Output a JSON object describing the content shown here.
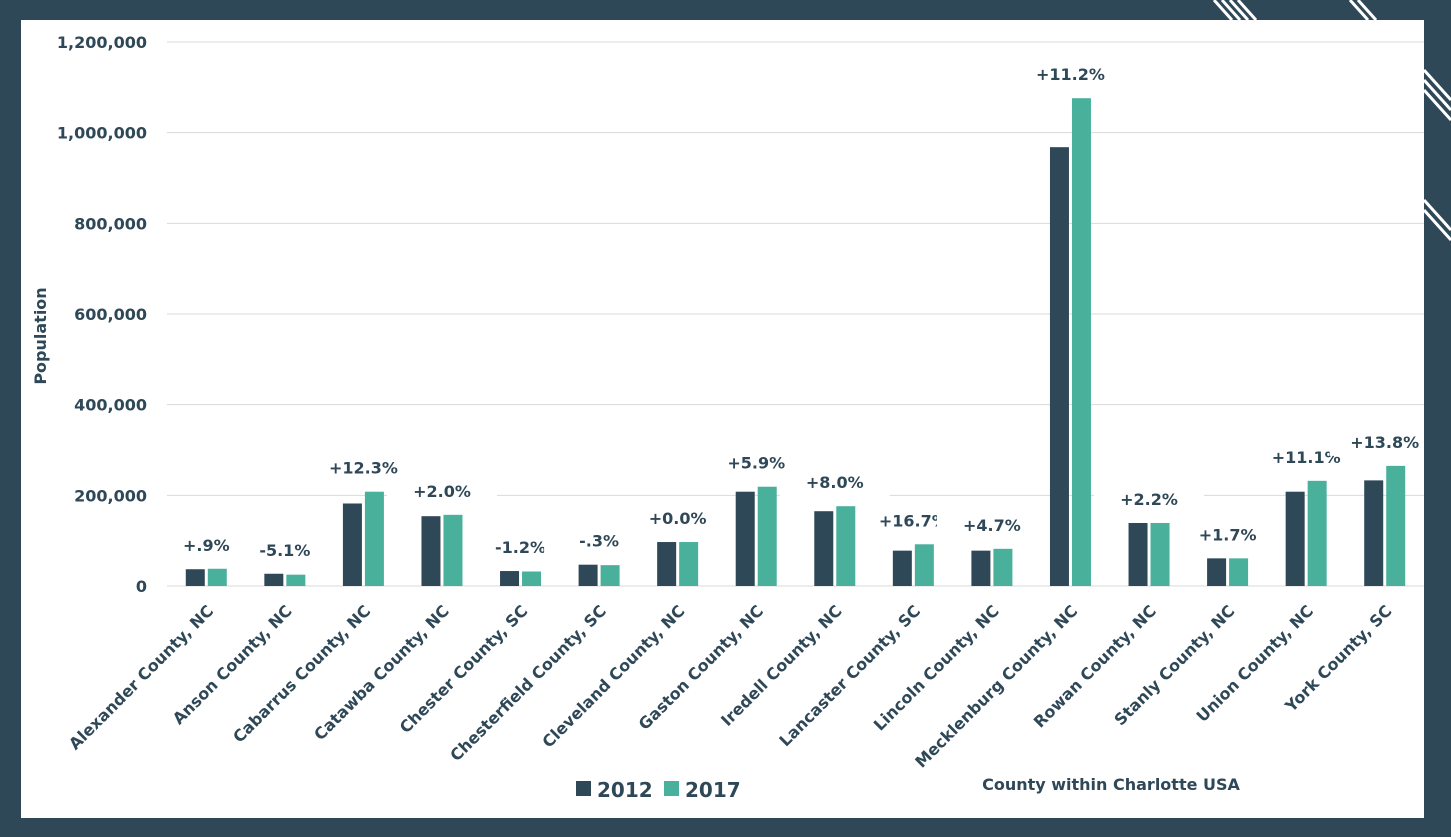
{
  "chart_data": {
    "type": "bar",
    "title": "",
    "xlabel": "County within Charlotte USA",
    "ylabel": "Population",
    "ylim": [
      0,
      1200000
    ],
    "yticks": [
      {
        "value": 0,
        "label": "0"
      },
      {
        "value": 200000,
        "label": "200,000"
      },
      {
        "value": 400000,
        "label": "400,000"
      },
      {
        "value": 600000,
        "label": "600,000"
      },
      {
        "value": 800000,
        "label": "800,000"
      },
      {
        "value": 1000000,
        "label": "1,000,000"
      },
      {
        "value": 1200000,
        "label": "1,200,000"
      }
    ],
    "grid": true,
    "legend_position": "bottom",
    "categories": [
      "Alexander County, NC",
      "Anson County, NC",
      "Cabarrus County, NC",
      "Catawba County, NC",
      "Chester County, SC",
      "Chesterfield County, SC",
      "Cleveland County, NC",
      "Gaston County, NC",
      "Iredell County, NC",
      "Lancaster County, SC",
      "Lincoln County, NC",
      "Mecklenburg County, NC",
      "Rowan County, NC",
      "Stanly County, NC",
      "Union County, NC",
      "York County, SC"
    ],
    "series": [
      {
        "name": "2012",
        "color": "#2f4858",
        "values": [
          37000,
          27000,
          182000,
          154000,
          33000,
          47000,
          97000,
          208000,
          165000,
          78000,
          78000,
          968000,
          139000,
          61000,
          208000,
          233000
        ]
      },
      {
        "name": "2017",
        "color": "#48b09b",
        "values": [
          38000,
          25000,
          208000,
          157000,
          32000,
          46000,
          97000,
          219000,
          176000,
          92000,
          82000,
          1076000,
          139000,
          61000,
          232000,
          265000
        ]
      }
    ],
    "annotations": [
      "+.9%",
      "-5.1%",
      "+12.3%",
      "+2.0%",
      "-1.2%",
      "-.3%",
      "+0.0%",
      "+5.9%",
      "+8.0%",
      "+16.7%",
      "+4.7%",
      "+11.2%",
      "+2.2%",
      "+1.7%",
      "+11.1%",
      "+13.8%"
    ]
  }
}
